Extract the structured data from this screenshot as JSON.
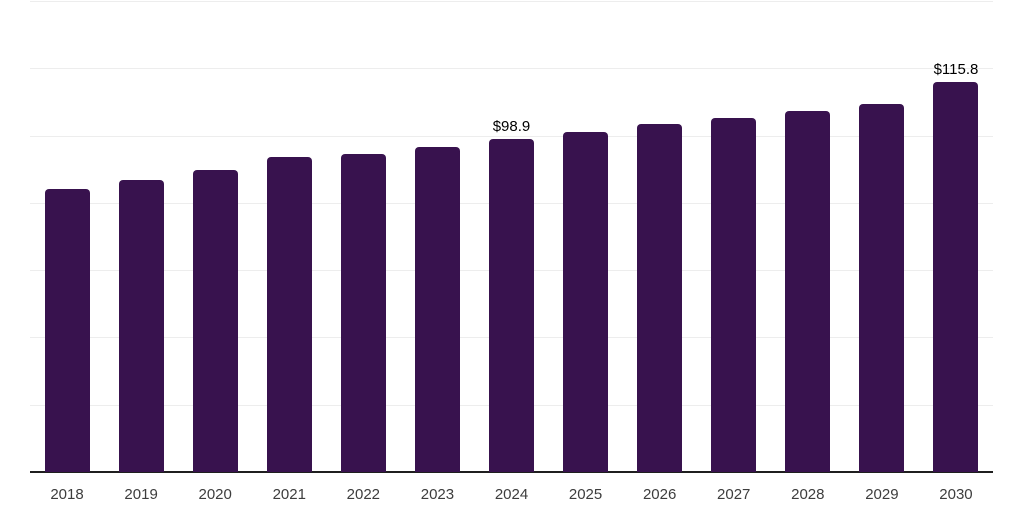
{
  "chart_data": {
    "type": "bar",
    "title": "",
    "xlabel": "",
    "ylabel": "",
    "categories": [
      "2018",
      "2019",
      "2020",
      "2021",
      "2022",
      "2023",
      "2024",
      "2025",
      "2026",
      "2027",
      "2028",
      "2029",
      "2030"
    ],
    "values": [
      84.1,
      86.8,
      89.9,
      93.5,
      94.6,
      96.6,
      98.9,
      101.1,
      103.3,
      105.3,
      107.3,
      109.3,
      115.8
    ],
    "data_labels": {
      "2024": "$98.9",
      "2030": "$115.8"
    },
    "value_prefix": "$",
    "ylim": [
      0,
      140
    ],
    "gridline_step": 20,
    "grid": "horizontal-only",
    "legend": "none",
    "y_axis_labels_visible": false,
    "colors": {
      "bar": "#38124e",
      "gridline": "#ededed",
      "axis_line": "#1f1f1f",
      "tick_label": "#3d3d3d",
      "data_label": "#000000",
      "background": "#ffffff"
    }
  }
}
